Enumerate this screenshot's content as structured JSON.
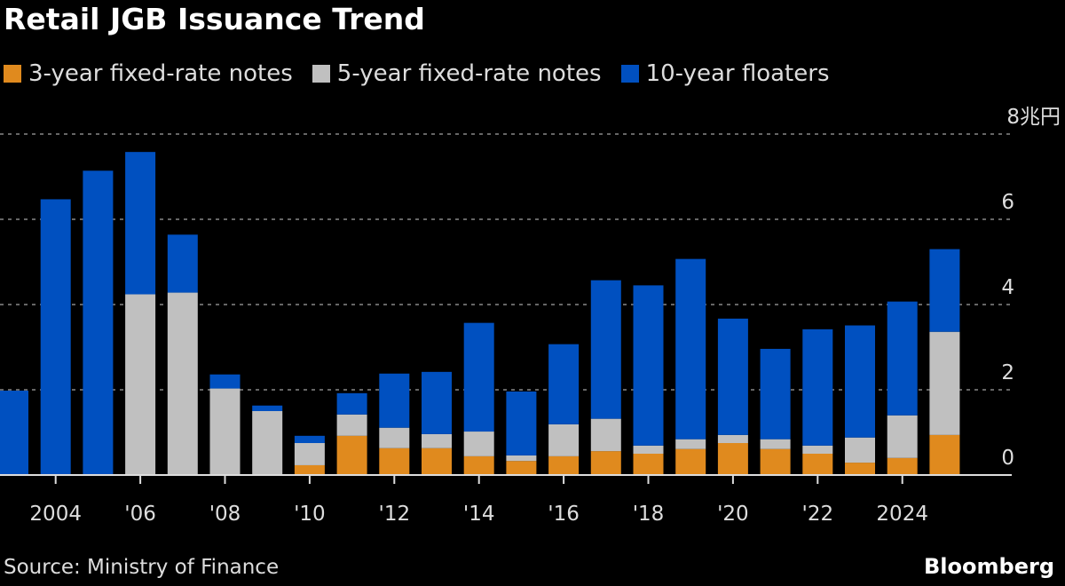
{
  "chart_data": {
    "type": "bar",
    "stacked": true,
    "title": "Retail JGB Issuance Trend",
    "unit_label": "8兆円",
    "categories": [
      "2003",
      "2004",
      "2005",
      "2006",
      "2007",
      "2008",
      "2009",
      "2010",
      "2011",
      "2012",
      "2013",
      "2014",
      "2015",
      "2016",
      "2017",
      "2018",
      "2019",
      "2020",
      "2021",
      "2022",
      "2023",
      "2024",
      "2025"
    ],
    "x_tick_labels": [
      {
        "year": "2004",
        "label": "2004"
      },
      {
        "year": "2006",
        "label": "'06"
      },
      {
        "year": "2008",
        "label": "'08"
      },
      {
        "year": "2010",
        "label": "'10"
      },
      {
        "year": "2012",
        "label": "'12"
      },
      {
        "year": "2014",
        "label": "'14"
      },
      {
        "year": "2016",
        "label": "'16"
      },
      {
        "year": "2018",
        "label": "'18"
      },
      {
        "year": "2020",
        "label": "'20"
      },
      {
        "year": "2022",
        "label": "'22"
      },
      {
        "year": "2024",
        "label": "2024"
      }
    ],
    "y_ticks": [
      0,
      2,
      4,
      6,
      8
    ],
    "ylim": [
      0,
      8
    ],
    "grid": true,
    "y_axis_side": "right",
    "legend_position": "top-left",
    "series": [
      {
        "name": "3-year fixed-rate notes",
        "color": "#e08a1e",
        "values": [
          0,
          0,
          0,
          0,
          0,
          0,
          0,
          0.23,
          0.92,
          0.63,
          0.63,
          0.44,
          0.33,
          0.44,
          0.56,
          0.5,
          0.61,
          0.75,
          0.61,
          0.5,
          0.29,
          0.4,
          0.94
        ]
      },
      {
        "name": "5-year fixed-rate notes",
        "color": "#c0c0c0",
        "values": [
          0,
          0,
          0,
          4.24,
          4.28,
          2.03,
          1.5,
          0.52,
          0.5,
          0.48,
          0.33,
          0.58,
          0.13,
          0.75,
          0.76,
          0.19,
          0.23,
          0.19,
          0.23,
          0.19,
          0.59,
          1.0,
          2.42
        ]
      },
      {
        "name": "10-year floaters",
        "color": "#0050c0",
        "values": [
          1.98,
          6.47,
          7.14,
          3.34,
          1.36,
          0.33,
          0.13,
          0.17,
          0.5,
          1.27,
          1.46,
          2.55,
          1.5,
          1.88,
          3.25,
          3.76,
          4.23,
          2.73,
          2.12,
          2.73,
          2.63,
          2.67,
          1.94
        ]
      }
    ]
  },
  "footer": {
    "source": "Source: Ministry of Finance",
    "brand": "Bloomberg"
  }
}
